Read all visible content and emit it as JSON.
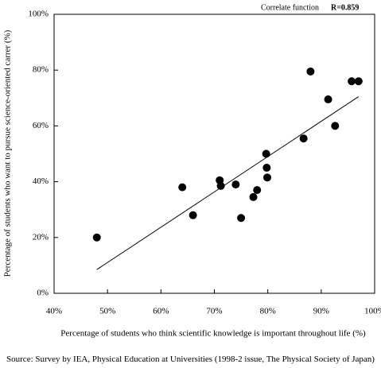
{
  "chart_data": {
    "type": "scatter",
    "title": "",
    "xlabel": "Percentage of students who think scientific knowledge is important throughout life (%)",
    "ylabel": "Percentage of students who want to pursue science-oriented carrer (%)",
    "xlim": [
      40,
      100
    ],
    "ylim": [
      0,
      100
    ],
    "x_ticks": [
      40,
      50,
      60,
      70,
      80,
      90,
      100
    ],
    "y_ticks": [
      0,
      20,
      40,
      60,
      80,
      100
    ],
    "x_tick_labels": [
      "40%",
      "50%",
      "60%",
      "70%",
      "80%",
      "90%",
      "100%"
    ],
    "y_tick_labels": [
      "0%",
      "20%",
      "40%",
      "60%",
      "80%",
      "100%"
    ],
    "grid": false,
    "legend": "none",
    "annotation": {
      "label": "Correlate function",
      "value": "R=0.859"
    },
    "trendline": {
      "x": [
        48,
        97
      ],
      "y": [
        8.5,
        70.5
      ]
    },
    "points": [
      {
        "x": 48,
        "y": 20
      },
      {
        "x": 64,
        "y": 38
      },
      {
        "x": 66,
        "y": 28
      },
      {
        "x": 71,
        "y": 40.5
      },
      {
        "x": 71.2,
        "y": 38.5
      },
      {
        "x": 74,
        "y": 39
      },
      {
        "x": 75,
        "y": 27
      },
      {
        "x": 77.3,
        "y": 34.5
      },
      {
        "x": 78,
        "y": 37
      },
      {
        "x": 79.7,
        "y": 50
      },
      {
        "x": 79.8,
        "y": 45
      },
      {
        "x": 79.9,
        "y": 41.5
      },
      {
        "x": 86.7,
        "y": 55.5
      },
      {
        "x": 88,
        "y": 79.5
      },
      {
        "x": 91.3,
        "y": 69.5
      },
      {
        "x": 92.6,
        "y": 60
      },
      {
        "x": 95.7,
        "y": 76
      },
      {
        "x": 97,
        "y": 76
      }
    ],
    "marker_color": "#000000",
    "line_color": "#000000"
  },
  "source": "Source: Survey by IEA, Physical Education at Universities (1998-2 issue, The Physical Society of Japan)"
}
